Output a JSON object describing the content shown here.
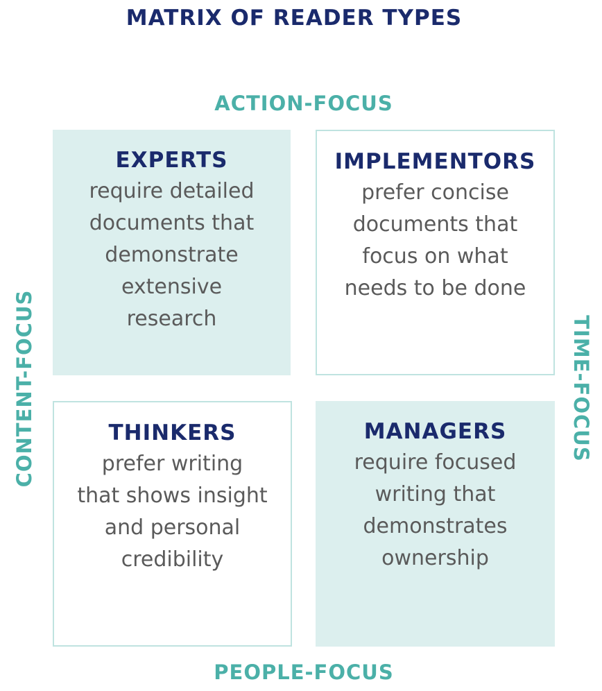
{
  "title": "MATRIX OF READER TYPES",
  "axes": {
    "top": "ACTION-FOCUS",
    "bottom": "PEOPLE-FOCUS",
    "left": "CONTENT-FOCUS",
    "right": "TIME-FOCUS"
  },
  "quadrants": [
    {
      "title": "EXPERTS",
      "lines": [
        "require detailed",
        "documents that",
        "demonstrate",
        "extensive",
        "research"
      ]
    },
    {
      "title": "IMPLEMENTORS",
      "lines": [
        "prefer concise",
        "documents that",
        "focus on what",
        "needs to be done"
      ]
    },
    {
      "title": "THINKERS",
      "lines": [
        "prefer writing",
        "that shows insight",
        "and personal",
        "credibility"
      ]
    },
    {
      "title": "MANAGERS",
      "lines": [
        "require focused",
        "writing that",
        "demonstrates",
        "ownership"
      ]
    }
  ],
  "colors": {
    "title": "#1a2a6c",
    "axis": "#4bb0a8",
    "fill": "#dcefee",
    "border": "#bfe3e0",
    "body_text": "#5a5a5a"
  }
}
